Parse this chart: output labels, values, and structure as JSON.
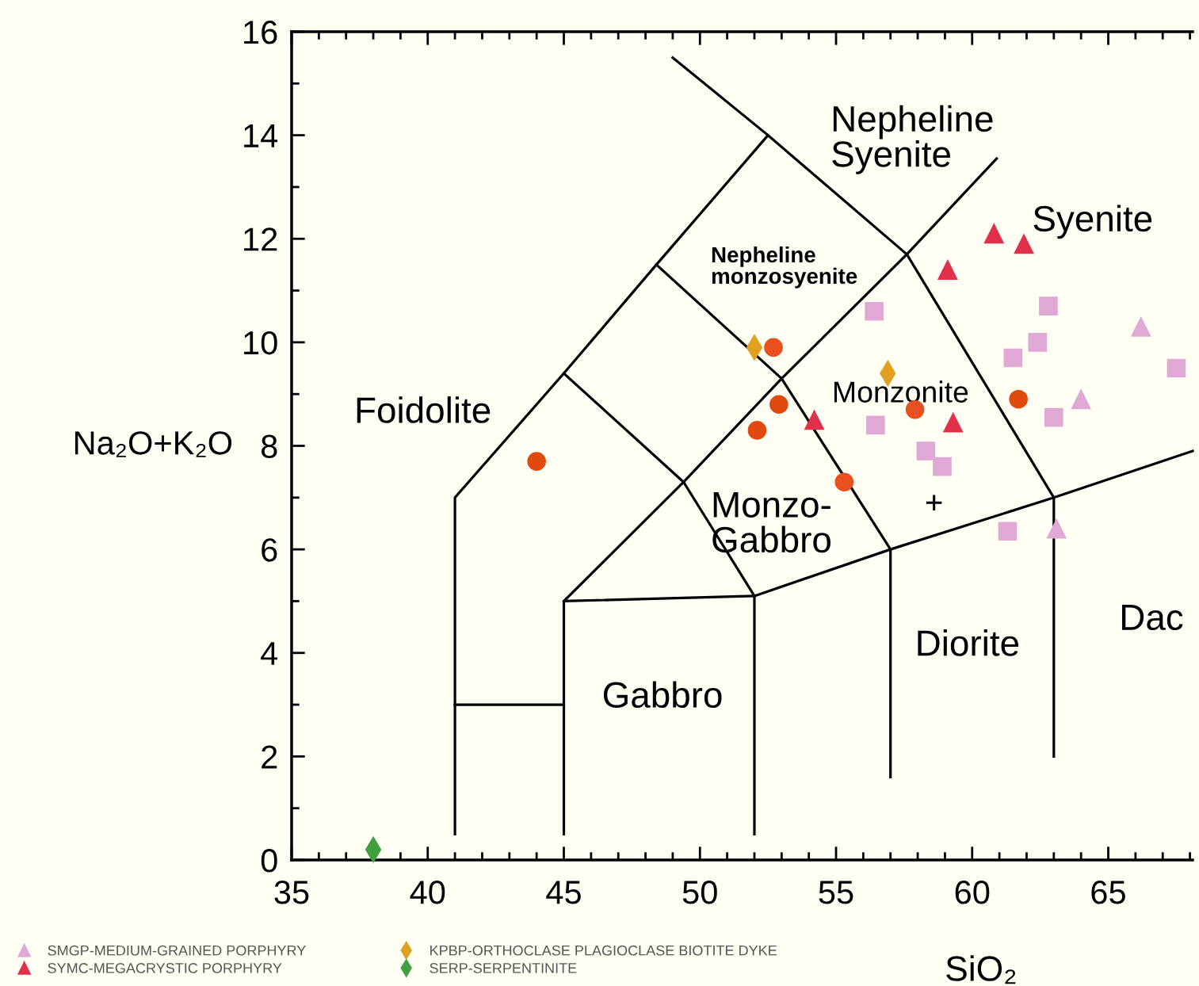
{
  "chart_data": {
    "type": "scatter",
    "xlabel": "SiO₂",
    "ylabel": "Na₂O+K₂O",
    "xlim": [
      35,
      68.1
    ],
    "ylim": [
      0,
      16
    ],
    "xticks": [
      35,
      {
        "value": 36,
        "label": null
      },
      {
        "value": 37,
        "label": null
      },
      {
        "value": 38,
        "label": null
      },
      {
        "value": 39,
        "label": null
      },
      40,
      {
        "value": 41,
        "label": null
      },
      {
        "value": 42,
        "label": null
      },
      {
        "value": 43,
        "label": null
      },
      {
        "value": 44,
        "label": null
      },
      45,
      {
        "value": 46,
        "label": null
      },
      {
        "value": 47,
        "label": null
      },
      {
        "value": 48,
        "label": null
      },
      {
        "value": 49,
        "label": null
      },
      50,
      {
        "value": 51,
        "label": null
      },
      {
        "value": 52,
        "label": null
      },
      {
        "value": 53,
        "label": null
      },
      {
        "value": 54,
        "label": null
      },
      55,
      {
        "value": 56,
        "label": null
      },
      {
        "value": 57,
        "label": null
      },
      {
        "value": 58,
        "label": null
      },
      {
        "value": 59,
        "label": null
      },
      60,
      {
        "value": 61,
        "label": null
      },
      {
        "value": 62,
        "label": null
      },
      {
        "value": 63,
        "label": null
      },
      {
        "value": 64,
        "label": null
      },
      65,
      {
        "value": 66,
        "label": null
      },
      {
        "value": 67,
        "label": null
      },
      {
        "value": 68,
        "label": null
      }
    ],
    "yticks": [
      0,
      {
        "value": 1,
        "label": null
      },
      2,
      {
        "value": 3,
        "label": null
      },
      4,
      {
        "value": 5,
        "label": null
      },
      6,
      {
        "value": 7,
        "label": null
      },
      8,
      {
        "value": 9,
        "label": null
      },
      10,
      {
        "value": 11,
        "label": null
      },
      12,
      {
        "value": 13,
        "label": null
      },
      14,
      {
        "value": 15,
        "label": null
      },
      16
    ],
    "grid": false,
    "legend": "bottom",
    "series": [
      {
        "type": "line",
        "color": "#000000",
        "marker": "none",
        "x": [
          41,
          41,
          45,
          48.4,
          52.5,
          49
        ],
        "values": [
          0.5,
          7,
          9.4,
          11.5,
          14,
          15.5
        ]
      },
      {
        "type": "line",
        "color": "#000000",
        "marker": "none",
        "x": [
          52.5,
          57.6,
          63,
          63
        ],
        "values": [
          14,
          11.7,
          7,
          2
        ]
      },
      {
        "type": "line",
        "color": "#000000",
        "marker": "none",
        "x": [
          45,
          49.4,
          53,
          57.6,
          60.9
        ],
        "values": [
          5,
          7.3,
          9.3,
          11.7,
          13.55
        ]
      },
      {
        "type": "line",
        "color": "#000000",
        "marker": "none",
        "x": [
          48.4,
          53,
          57,
          57
        ],
        "values": [
          11.5,
          9.3,
          6,
          1.6
        ]
      },
      {
        "type": "line",
        "color": "#000000",
        "marker": "none",
        "x": [
          45,
          49.4,
          52,
          52
        ],
        "values": [
          9.4,
          7.3,
          5.1,
          0.5
        ]
      },
      {
        "type": "line",
        "color": "#000000",
        "marker": "none",
        "x": [
          45,
          45,
          52,
          57,
          63,
          68.1
        ],
        "values": [
          0.5,
          5,
          5.1,
          6,
          7,
          7.9
        ]
      },
      {
        "type": "line",
        "color": "#000000",
        "marker": "none",
        "x": [
          41,
          45
        ],
        "values": [
          3,
          3
        ]
      },
      {
        "name": "SMGP-MEDIUM-GRAINED PORPHYRY",
        "color": "#e0a8d4",
        "marker": "triangle",
        "x": [
          66.2,
          64.0,
          63.1
        ],
        "values": [
          10.3,
          8.9,
          6.4
        ]
      },
      {
        "name": "SYMC-MEGACRYSTIC PORPHYRY",
        "color": "#e0304a",
        "marker": "triangle",
        "x": [
          60.8,
          61.9,
          59.1,
          54.2,
          59.3
        ],
        "values": [
          12.1,
          11.9,
          11.4,
          8.5,
          8.45
        ]
      },
      {
        "name": "KPBP-ORTHOCLASE PLAGIOCLASE BIOTITE DYKE",
        "color": "#e0a020",
        "marker": "diamond",
        "x": [
          52.0,
          56.9
        ],
        "values": [
          9.9,
          9.4
        ]
      },
      {
        "name": "SERP-SERPENTINITE",
        "color": "#40a040",
        "marker": "diamond",
        "x": [
          38.0
        ],
        "values": [
          0.2
        ]
      },
      {
        "color": "#e04a10",
        "marker": "circle",
        "x": [
          44.0,
          52.9,
          52.1,
          61.7
        ],
        "values": [
          7.7,
          8.8,
          8.3,
          8.9
        ]
      },
      {
        "color": "#e85020",
        "marker": "circle",
        "x": [
          52.7,
          55.3,
          57.9
        ],
        "values": [
          9.9,
          7.3,
          8.7
        ]
      },
      {
        "color": "#e0a8d4",
        "marker": "square",
        "x": [
          56.4,
          62.8,
          61.5,
          62.4,
          67.5,
          63.0,
          58.3,
          58.9,
          61.3
        ],
        "values": [
          10.6,
          10.7,
          9.7,
          10.0,
          9.5,
          8.55,
          7.9,
          7.6,
          6.35
        ]
      },
      {
        "color": "#e0a8d4",
        "marker": "square",
        "x": [
          56.45
        ],
        "values": [
          8.4
        ]
      },
      {
        "color": "#000000",
        "marker": "cross",
        "x": [
          58.6
        ],
        "values": [
          6.9
        ]
      }
    ],
    "annotations": [
      "Nepheline\nSyenite",
      "Nepheline\nmonzosyenite",
      "Syenite",
      "Foidolite",
      "Monzonite",
      "Monzo-\nGabbro",
      "Diorite",
      "Gabbro",
      "Dac"
    ]
  }
}
